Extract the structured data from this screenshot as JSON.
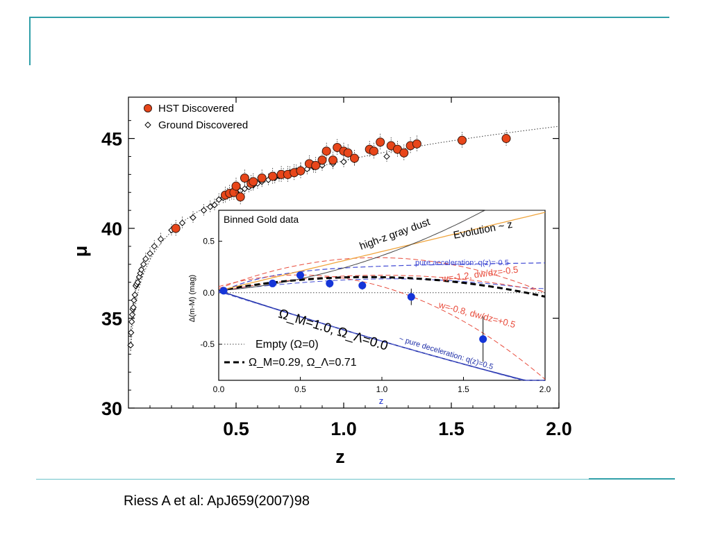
{
  "slide": {
    "citation": "Riess A et al: ApJ659(2007)98",
    "accent_color": "#2f9fa8"
  },
  "chart_data": [
    {
      "type": "scatter",
      "xlabel": "z",
      "ylabel": "μ",
      "xlim": [
        0,
        2.0
      ],
      "ylim": [
        30,
        47.3
      ],
      "x_ticks": [
        "0.5",
        "1.0",
        "1.5",
        "2.0"
      ],
      "y_ticks": [
        "30",
        "35",
        "40",
        "45"
      ],
      "legend": {
        "position": "top-left",
        "entries": [
          "HST Discovered",
          "Ground Discovered"
        ]
      },
      "series": [
        {
          "name": "HST Discovered",
          "color": "#e8461a",
          "marker": "circle",
          "x": [
            0.22,
            0.45,
            0.47,
            0.49,
            0.5,
            0.52,
            0.54,
            0.57,
            0.58,
            0.62,
            0.67,
            0.71,
            0.74,
            0.77,
            0.8,
            0.84,
            0.87,
            0.9,
            0.92,
            0.95,
            0.97,
            1.0,
            1.02,
            1.05,
            1.12,
            1.14,
            1.17,
            1.22,
            1.25,
            1.28,
            1.31,
            1.34,
            1.55,
            1.755
          ],
          "y": [
            40.0,
            41.85,
            41.95,
            42.0,
            42.35,
            41.75,
            42.8,
            42.5,
            42.6,
            42.8,
            42.9,
            43.0,
            43.0,
            43.1,
            43.2,
            43.6,
            43.5,
            43.8,
            44.3,
            43.8,
            44.5,
            44.3,
            44.2,
            43.9,
            44.4,
            44.3,
            44.8,
            44.6,
            44.4,
            44.2,
            44.6,
            44.7,
            44.9,
            45.0
          ]
        },
        {
          "name": "Ground Discovered",
          "color": "#000000",
          "marker": "diamond-open",
          "x": [
            0.01,
            0.012,
            0.015,
            0.018,
            0.02,
            0.023,
            0.026,
            0.03,
            0.034,
            0.038,
            0.043,
            0.05,
            0.055,
            0.06,
            0.07,
            0.08,
            0.1,
            0.12,
            0.15,
            0.2,
            0.25,
            0.3,
            0.35,
            0.38,
            0.4,
            0.42,
            0.44,
            0.46,
            0.48,
            0.5,
            0.52,
            0.54,
            0.56,
            0.58,
            0.6,
            0.62,
            0.65,
            0.68,
            0.7,
            0.72,
            0.75,
            0.78,
            0.8,
            0.83,
            0.86,
            0.9,
            0.95,
            1.0,
            1.05,
            1.2
          ],
          "y": [
            33.5,
            34.2,
            34.8,
            35.2,
            35.5,
            35.6,
            36.0,
            36.3,
            36.8,
            36.9,
            37.0,
            37.3,
            37.5,
            37.7,
            38.0,
            38.3,
            38.6,
            39.0,
            39.4,
            39.9,
            40.3,
            40.6,
            41.0,
            41.2,
            41.3,
            41.6,
            41.7,
            41.9,
            41.9,
            42.0,
            42.1,
            42.2,
            42.3,
            42.4,
            42.5,
            42.6,
            42.7,
            42.8,
            42.9,
            43.0,
            43.1,
            43.2,
            43.3,
            43.3,
            43.4,
            43.5,
            43.6,
            43.7,
            43.8,
            44.0
          ]
        }
      ],
      "model_curve": "dotted line"
    },
    {
      "type": "line",
      "title": "Binned Gold data",
      "xlabel": "z",
      "ylabel": "Δ(m-M) (mag)",
      "xlim": [
        0.0,
        2.0
      ],
      "ylim": [
        -0.85,
        0.8
      ],
      "x_ticks": [
        "0.0",
        "0.5",
        "1.0",
        "1.5",
        "2.0"
      ],
      "y_ticks": [
        "0.5",
        "0.0",
        "-0.5"
      ],
      "binned_points": {
        "color": "#1535d8",
        "x": [
          0.03,
          0.33,
          0.5,
          0.68,
          0.88,
          1.18,
          1.62
        ],
        "y": [
          0.02,
          0.09,
          0.17,
          0.09,
          0.07,
          -0.04,
          -0.45
        ],
        "yerr": [
          0.02,
          0.03,
          0.03,
          0.04,
          0.04,
          0.08,
          0.22
        ]
      },
      "curves": [
        {
          "label": "high-z gray dust",
          "color": "#444444",
          "dash": "solid"
        },
        {
          "label": "Evolution ~ z",
          "color": "#f0a43c",
          "dash": "solid"
        },
        {
          "label": "pure acceleration: q(z)=-0.5",
          "color": "#3c46d2",
          "dash": "dashed"
        },
        {
          "label": "w=-1.2, dw/dz=-0.5",
          "color": "#e84a3a",
          "dash": "dashed"
        },
        {
          "label": "w=-0.8, dw/dz=+0.5",
          "color": "#e84a3a",
          "dash": "dashed"
        },
        {
          "label": "~ pure deceleration: q(z)=0.5",
          "color": "#1f2fa8",
          "dash": "solid"
        },
        {
          "label": "Ω_M=1.0, Ω_Λ=0.0",
          "color": "#1f2fa8",
          "dash": "solid"
        }
      ],
      "legend": {
        "position": "bottom-left",
        "entries": [
          "Empty (Ω=0)",
          "Ω_M=0.29, Ω_Λ=0.71"
        ]
      }
    }
  ]
}
